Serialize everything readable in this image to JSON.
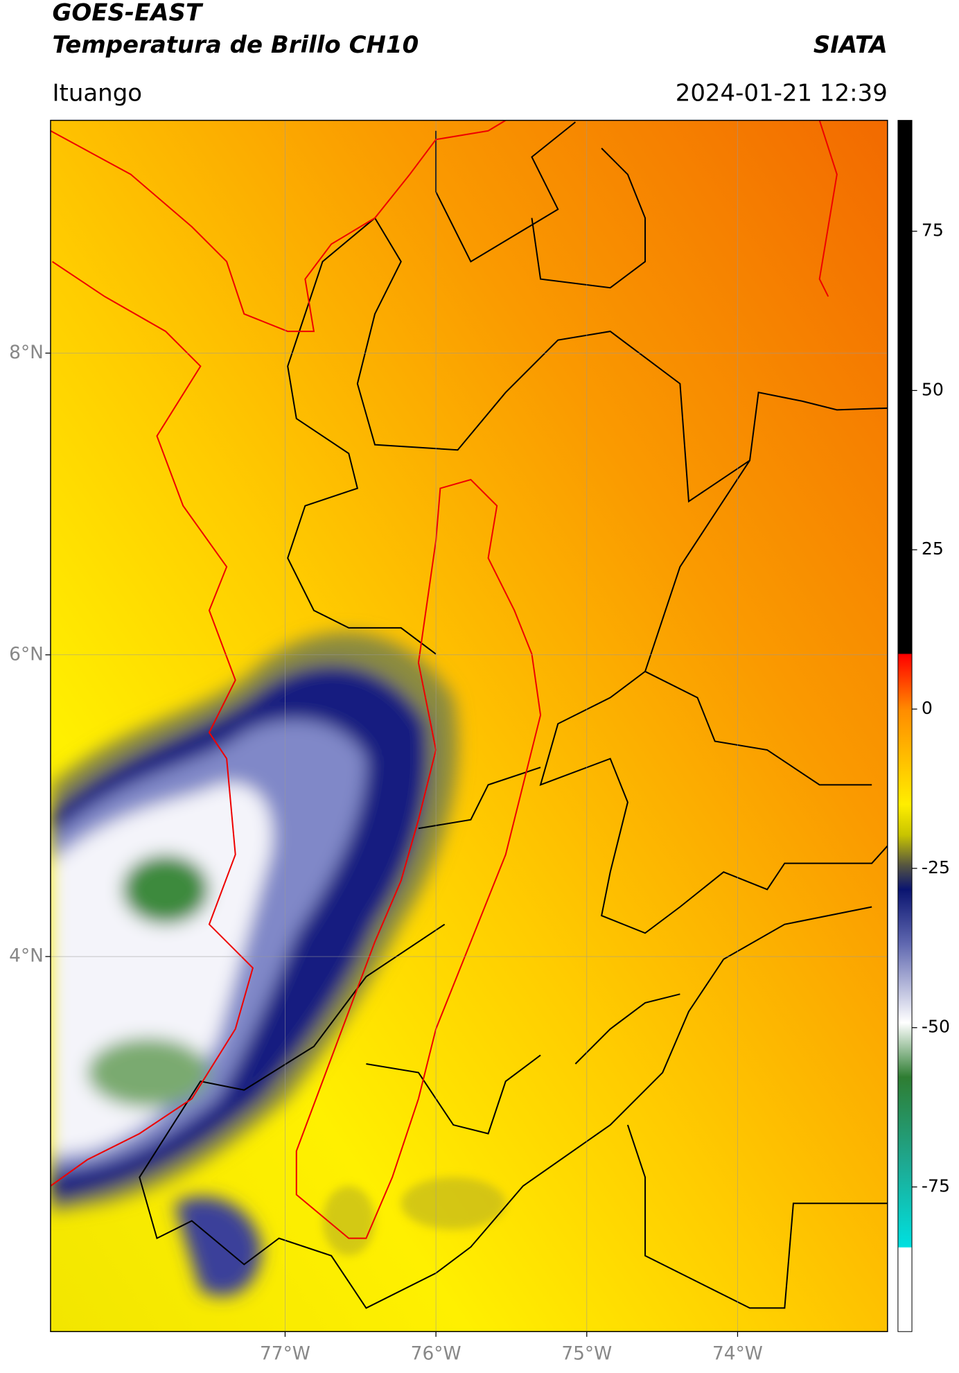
{
  "header": {
    "title": "GOES-EAST",
    "subtitle": "Temperatura de Brillo CH10",
    "brand": "SIATA",
    "location": "Ituango",
    "datetime": "2024-01-21 12:39"
  },
  "map": {
    "xlim": [
      -78.555,
      -73.006
    ],
    "ylim": [
      1.514,
      9.543
    ],
    "xticks": [
      {
        "value": -77,
        "label": "77°W"
      },
      {
        "value": -76,
        "label": "76°W"
      },
      {
        "value": -75,
        "label": "75°W"
      },
      {
        "value": -74,
        "label": "74°W"
      }
    ],
    "yticks": [
      {
        "value": 8,
        "label": "8°N"
      },
      {
        "value": 6,
        "label": "6°N"
      },
      {
        "value": 4,
        "label": "4°N"
      }
    ],
    "grid": true
  },
  "colorbar": {
    "lim": [
      -97.7,
      92.4
    ],
    "ticks": [
      75,
      50,
      25,
      0,
      -25,
      -50,
      -75
    ]
  }
}
